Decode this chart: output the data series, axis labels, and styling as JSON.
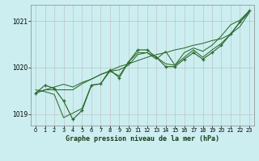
{
  "background_color": "#cceef0",
  "grid_color": "#bbbbbb",
  "line_color": "#2d6a2d",
  "marker_color": "#2d6a2d",
  "xlabel": "Graphe pression niveau de la mer (hPa)",
  "xlim": [
    -0.5,
    23.5
  ],
  "ylim": [
    1018.75,
    1021.35
  ],
  "yticks": [
    1019,
    1020,
    1021
  ],
  "xticks": [
    0,
    1,
    2,
    3,
    4,
    5,
    6,
    7,
    8,
    9,
    10,
    11,
    12,
    13,
    14,
    15,
    16,
    17,
    18,
    19,
    20,
    21,
    22,
    23
  ],
  "main_series": [
    1019.45,
    1019.62,
    1019.55,
    1019.28,
    1018.88,
    1019.08,
    1019.62,
    1019.65,
    1019.95,
    1019.78,
    1020.12,
    1020.38,
    1020.38,
    1020.22,
    1020.02,
    1020.02,
    1020.18,
    1020.32,
    1020.18,
    1020.32,
    1020.48,
    1020.72,
    1020.98,
    1021.22
  ],
  "trend_series": [
    1019.45,
    1019.52,
    1019.58,
    1019.64,
    1019.58,
    1019.68,
    1019.75,
    1019.85,
    1019.93,
    1020.02,
    1020.08,
    1020.15,
    1020.22,
    1020.28,
    1020.32,
    1020.38,
    1020.42,
    1020.48,
    1020.52,
    1020.58,
    1020.62,
    1020.72,
    1020.88,
    1021.18
  ],
  "alt1_series": [
    1019.52,
    1019.48,
    1019.42,
    1018.92,
    1019.02,
    1019.12,
    1019.62,
    1019.65,
    1019.92,
    1019.82,
    1020.12,
    1020.32,
    1020.32,
    1020.18,
    1020.35,
    1020.05,
    1020.32,
    1020.42,
    1020.35,
    1020.48,
    1020.68,
    1020.92,
    1021.02,
    1021.22
  ],
  "alt2_series": [
    1019.45,
    1019.52,
    1019.52,
    1019.52,
    1019.52,
    1019.65,
    1019.75,
    1019.85,
    1019.92,
    1019.95,
    1020.05,
    1020.28,
    1020.32,
    1020.22,
    1020.08,
    1020.05,
    1020.22,
    1020.38,
    1020.22,
    1020.38,
    1020.52,
    1020.72,
    1020.98,
    1021.18
  ]
}
